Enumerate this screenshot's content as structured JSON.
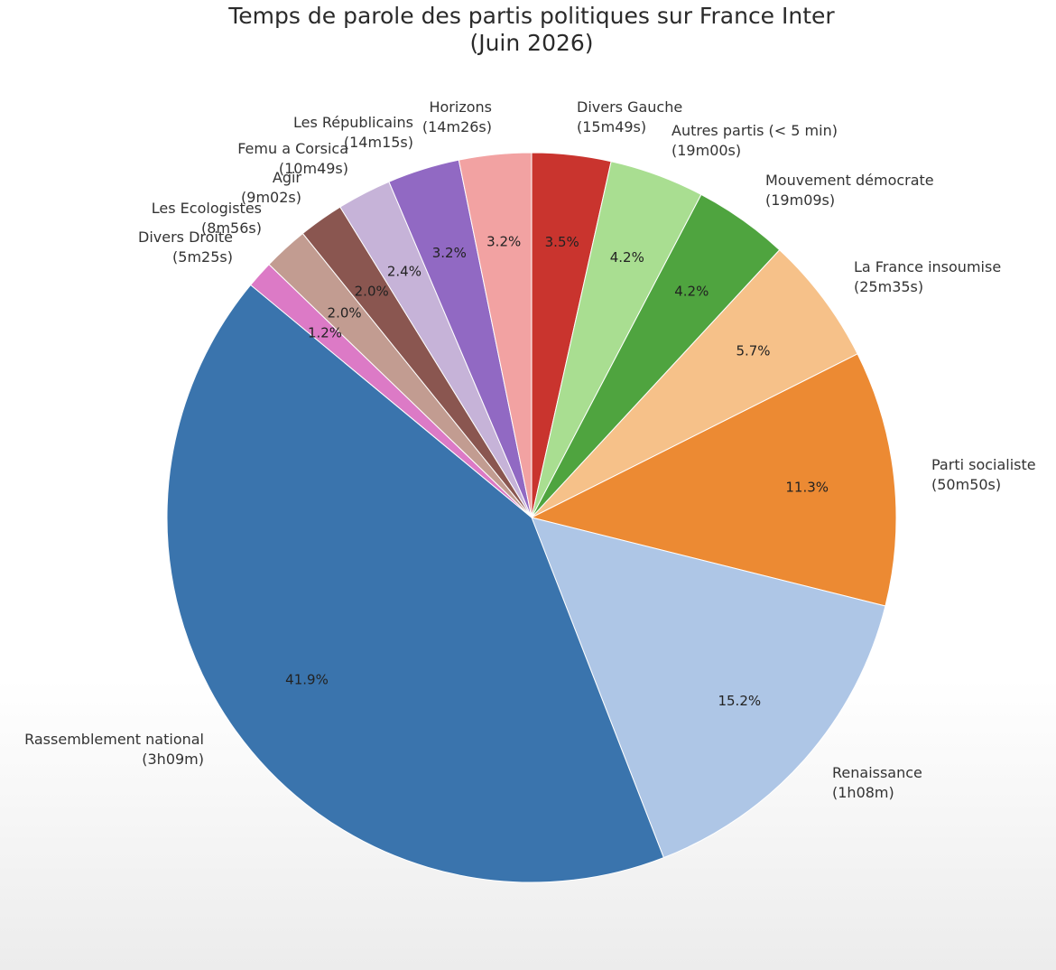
{
  "chart_data": {
    "type": "pie",
    "title": "Temps de parole des partis politiques sur France Inter",
    "subtitle": "(Juin 2026)",
    "start_angle_deg": 90,
    "direction": "clockwise",
    "slices": [
      {
        "name": "Divers Gauche",
        "duration": "(15m49s)",
        "percent": 3.5,
        "pct_label": "3.5%",
        "color": "#c9342e"
      },
      {
        "name": "Autres partis (< 5 min)",
        "duration": "(19m00s)",
        "percent": 4.2,
        "pct_label": "4.2%",
        "color": "#a9de91"
      },
      {
        "name": "Mouvement démocrate",
        "duration": "(19m09s)",
        "percent": 4.2,
        "pct_label": "4.2%",
        "color": "#4fa43f"
      },
      {
        "name": "La France insoumise",
        "duration": "(25m35s)",
        "percent": 5.7,
        "pct_label": "5.7%",
        "color": "#f6c189"
      },
      {
        "name": "Parti socialiste",
        "duration": "(50m50s)",
        "percent": 11.3,
        "pct_label": "11.3%",
        "color": "#ec8a33"
      },
      {
        "name": "Renaissance",
        "duration": "(1h08m)",
        "percent": 15.2,
        "pct_label": "15.2%",
        "color": "#aec6e6"
      },
      {
        "name": "Rassemblement national",
        "duration": "(3h09m)",
        "percent": 41.9,
        "pct_label": "41.9%",
        "color": "#3a74ad"
      },
      {
        "name": "Divers Droite",
        "duration": "(5m25s)",
        "percent": 1.2,
        "pct_label": "1.2%",
        "color": "#dc7ac6"
      },
      {
        "name": "Les Ecologistes",
        "duration": "(8m56s)",
        "percent": 2.0,
        "pct_label": "2.0%",
        "color": "#c29c91"
      },
      {
        "name": "Agir",
        "duration": "(9m02s)",
        "percent": 2.0,
        "pct_label": "2.0%",
        "color": "#8a5650"
      },
      {
        "name": "Femu a Corsica",
        "duration": "(10m49s)",
        "percent": 2.4,
        "pct_label": "2.4%",
        "color": "#c6b3d8"
      },
      {
        "name": "Les Républicains",
        "duration": "(14m15s)",
        "percent": 3.2,
        "pct_label": "3.2%",
        "color": "#9169c3"
      },
      {
        "name": "Horizons",
        "duration": "(14m26s)",
        "percent": 3.2,
        "pct_label": "3.2%",
        "color": "#f2a2a2"
      }
    ]
  }
}
